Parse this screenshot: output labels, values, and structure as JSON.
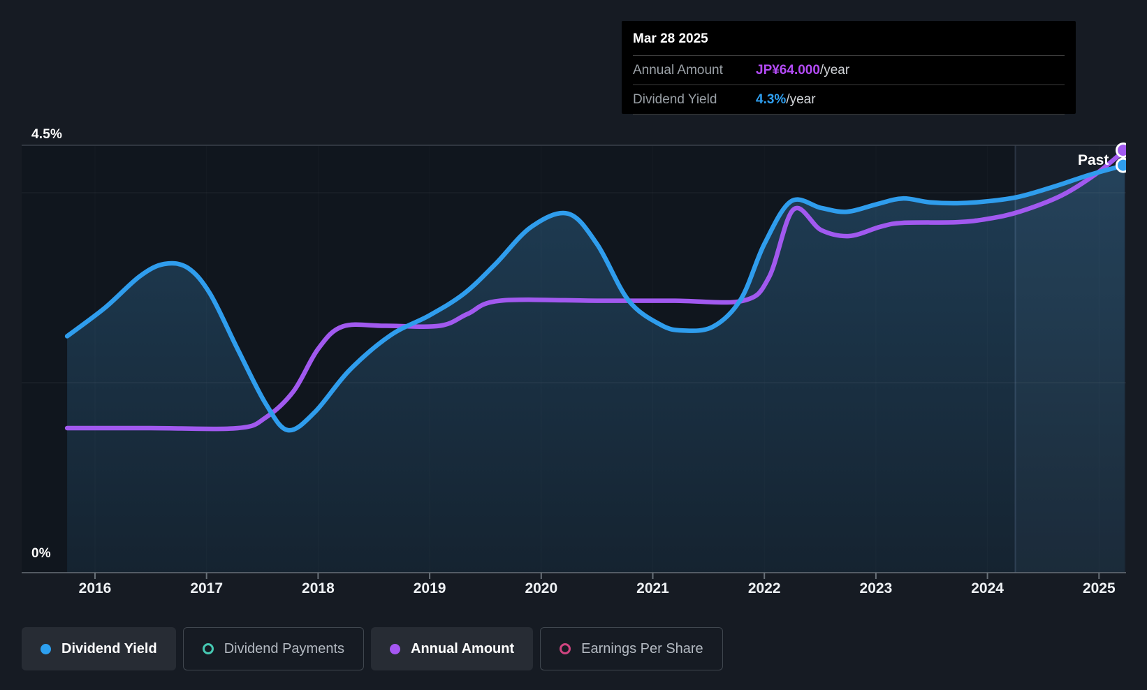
{
  "tooltip": {
    "title": "Mar 28 2025",
    "rows": [
      {
        "label": "Annual Amount",
        "value": "JP¥64.000",
        "suffix": "/year",
        "value_color": "#b44bf7"
      },
      {
        "label": "Dividend Yield",
        "value": "4.3%",
        "suffix": "/year",
        "value_color": "#2f9ff0"
      }
    ]
  },
  "axis": {
    "y_top_label": "4.5%",
    "y_bottom_label": "0%",
    "x_labels": [
      "2016",
      "2017",
      "2018",
      "2019",
      "2020",
      "2021",
      "2022",
      "2023",
      "2024",
      "2025"
    ]
  },
  "annotations": {
    "past_label": "Past"
  },
  "legend": {
    "items": [
      {
        "label": "Dividend Yield",
        "marker": "dot",
        "color": "#2da0f0",
        "active": true
      },
      {
        "label": "Dividend Payments",
        "marker": "ring",
        "color": "#46c8b2",
        "active": false
      },
      {
        "label": "Annual Amount",
        "marker": "dot",
        "color": "#a557f2",
        "active": true
      },
      {
        "label": "Earnings Per Share",
        "marker": "ring",
        "color": "#cf4480",
        "active": false
      }
    ]
  },
  "colors": {
    "background": "#161b23",
    "plot_background": "#10161e",
    "tooltip_background": "#000000",
    "yield_line": "#2f9ded",
    "amount_line": "#a159ef",
    "area_fill_top": "rgba(64,150,210,0.30)",
    "area_fill_bottom": "rgba(64,150,210,0.10)",
    "grid_line": "rgba(255,255,255,0.07)",
    "top_border": "#3a414b",
    "axis_line": "#687078",
    "highlight_band": "rgba(145,180,225,0.055)",
    "divider_line": "rgba(160,195,240,0.16)"
  },
  "chart_data": {
    "type": "line",
    "x_axis": {
      "ticks": [
        2016,
        2017,
        2018,
        2019,
        2020,
        2021,
        2022,
        2023,
        2024,
        2025
      ],
      "range": [
        2015.75,
        2025.23
      ]
    },
    "y_axis_yield": {
      "unit": "%",
      "range": [
        0,
        4.5
      ],
      "top_label": "4.5%",
      "bottom_label": "0%",
      "gridlines": [
        2,
        4
      ]
    },
    "y_axis_amount": {
      "unit": "JP¥",
      "range": [
        0,
        64.75
      ]
    },
    "past_divider_x": 2024.25,
    "legend_position": "bottom",
    "series": [
      {
        "name": "Dividend Yield",
        "unit": "%",
        "style": "line_with_area",
        "end_marker": true,
        "points": [
          [
            2015.75,
            2.49
          ],
          [
            2016.09,
            2.79
          ],
          [
            2016.4,
            3.12
          ],
          [
            2016.62,
            3.25
          ],
          [
            2016.83,
            3.21
          ],
          [
            2017.03,
            2.94
          ],
          [
            2017.28,
            2.35
          ],
          [
            2017.53,
            1.78
          ],
          [
            2017.73,
            1.5
          ],
          [
            2017.97,
            1.69
          ],
          [
            2018.28,
            2.13
          ],
          [
            2018.65,
            2.5
          ],
          [
            2019.0,
            2.71
          ],
          [
            2019.31,
            2.94
          ],
          [
            2019.59,
            3.25
          ],
          [
            2019.91,
            3.64
          ],
          [
            2020.24,
            3.78
          ],
          [
            2020.5,
            3.46
          ],
          [
            2020.78,
            2.87
          ],
          [
            2021.07,
            2.61
          ],
          [
            2021.27,
            2.55
          ],
          [
            2021.54,
            2.59
          ],
          [
            2021.79,
            2.88
          ],
          [
            2022.0,
            3.46
          ],
          [
            2022.24,
            3.91
          ],
          [
            2022.51,
            3.84
          ],
          [
            2022.74,
            3.8
          ],
          [
            2023.01,
            3.88
          ],
          [
            2023.24,
            3.94
          ],
          [
            2023.48,
            3.9
          ],
          [
            2023.73,
            3.89
          ],
          [
            2024.0,
            3.91
          ],
          [
            2024.29,
            3.96
          ],
          [
            2024.61,
            4.07
          ],
          [
            2024.92,
            4.19
          ],
          [
            2025.23,
            4.29
          ]
        ]
      },
      {
        "name": "Annual Amount",
        "unit": "JP¥",
        "style": "line",
        "end_marker": true,
        "points": [
          [
            2015.75,
            21.9
          ],
          [
            2016.5,
            21.9
          ],
          [
            2017.28,
            21.9
          ],
          [
            2017.53,
            23.5
          ],
          [
            2017.78,
            27.5
          ],
          [
            2018.0,
            33.9
          ],
          [
            2018.22,
            37.3
          ],
          [
            2018.6,
            37.4
          ],
          [
            2019.09,
            37.4
          ],
          [
            2019.34,
            39.2
          ],
          [
            2019.63,
            41.2
          ],
          [
            2020.5,
            41.2
          ],
          [
            2021.2,
            41.2
          ],
          [
            2021.81,
            41.2
          ],
          [
            2022.04,
            44.7
          ],
          [
            2022.26,
            55.0
          ],
          [
            2022.51,
            51.9
          ],
          [
            2022.76,
            51.0
          ],
          [
            2023.04,
            52.4
          ],
          [
            2023.24,
            53.0
          ],
          [
            2023.73,
            53.1
          ],
          [
            2024.0,
            53.6
          ],
          [
            2024.29,
            54.7
          ],
          [
            2024.67,
            57.2
          ],
          [
            2024.98,
            60.5
          ],
          [
            2025.23,
            64.0
          ]
        ]
      }
    ]
  }
}
